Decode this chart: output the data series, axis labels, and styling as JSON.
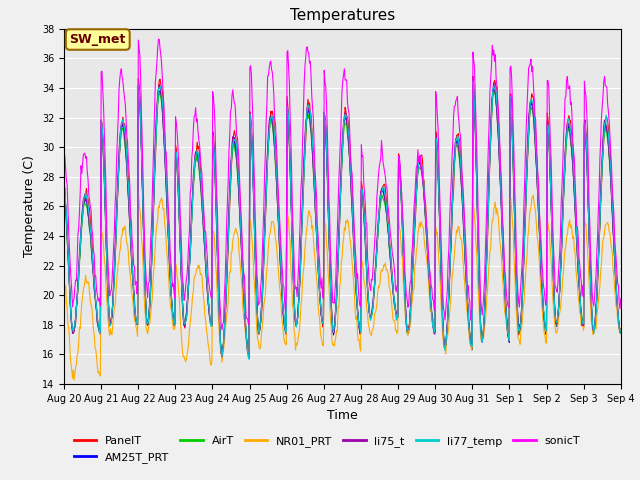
{
  "title": "Temperatures",
  "xlabel": "Time",
  "ylabel": "Temperature (C)",
  "ylim": [
    14,
    38
  ],
  "yticks": [
    14,
    16,
    18,
    20,
    22,
    24,
    26,
    28,
    30,
    32,
    34,
    36,
    38
  ],
  "series_colors": {
    "PanelT": "#ff0000",
    "AM25T_PRT": "#0000ff",
    "AirT": "#00cc00",
    "NR01_PRT": "#ffaa00",
    "li75_t": "#9900aa",
    "li77_temp": "#00cccc",
    "sonicT": "#ff00ff"
  },
  "annotation_label": "SW_met",
  "annotation_bg": "#ffff99",
  "annotation_border": "#996600",
  "annotation_text_color": "#660000",
  "plot_bg_color": "#e8e8e8",
  "fig_bg_color": "#f0f0f0",
  "grid_color": "#ffffff",
  "tick_fontsize": 7,
  "label_fontsize": 9,
  "title_fontsize": 11,
  "legend_fontsize": 8,
  "line_width": 0.8,
  "day_maxima_sonicT": [
    29.5,
    35.0,
    37.2,
    32.0,
    33.5,
    35.8,
    36.7,
    35.0,
    29.5,
    29.5,
    33.3,
    36.5,
    35.8,
    34.5,
    34.5
  ],
  "day_maxima_others": [
    27.0,
    32.0,
    34.5,
    30.0,
    31.0,
    32.5,
    33.0,
    32.5,
    27.5,
    29.5,
    31.0,
    34.5,
    33.5,
    32.0,
    32.0
  ],
  "day_maxima_nr01": [
    21.0,
    24.5,
    26.5,
    22.0,
    24.5,
    25.0,
    25.5,
    25.0,
    22.0,
    25.0,
    24.5,
    26.0,
    26.5,
    25.0,
    25.0
  ],
  "day_minima": [
    17.5,
    18.0,
    18.0,
    18.0,
    16.0,
    17.5,
    18.0,
    17.5,
    18.5,
    17.5,
    16.5,
    17.0,
    17.5,
    18.0,
    17.5
  ],
  "day_minima_nr01": [
    14.5,
    17.5,
    17.5,
    15.5,
    16.0,
    16.5,
    16.5,
    16.5,
    17.5,
    17.5,
    16.5,
    17.0,
    17.0,
    17.5,
    17.5
  ]
}
